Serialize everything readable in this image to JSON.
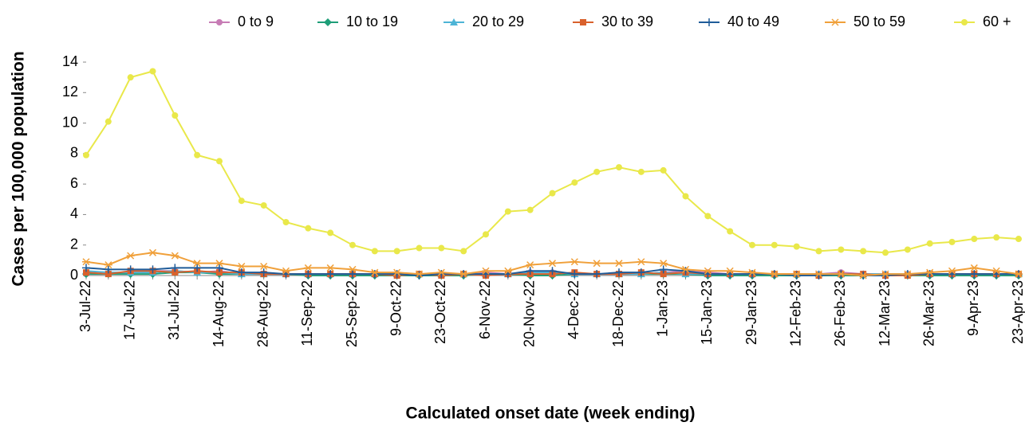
{
  "chart_data": {
    "type": "line",
    "x_label": "Calculated onset date (week ending)",
    "y_label": "Cases per 100,000 population",
    "categories": [
      "3-Jul-22",
      null,
      "17-Jul-22",
      null,
      "31-Jul-22",
      null,
      "14-Aug-22",
      null,
      "28-Aug-22",
      null,
      "11-Sep-22",
      null,
      "25-Sep-22",
      null,
      "9-Oct-22",
      null,
      "23-Oct-22",
      null,
      "6-Nov-22",
      null,
      "20-Nov-22",
      null,
      "4-Dec-22",
      null,
      "18-Dec-22",
      null,
      "1-Jan-23",
      null,
      "15-Jan-23",
      null,
      "29-Jan-23",
      null,
      "12-Feb-23",
      null,
      "26-Feb-23",
      null,
      "12-Mar-23",
      null,
      "26-Mar-23",
      null,
      "9-Apr-23",
      null,
      "23-Apr-23"
    ],
    "ylim": [
      0,
      14
    ],
    "yticks": [
      0,
      2,
      4,
      6,
      8,
      10,
      12,
      14
    ],
    "grid": false,
    "legend": "top",
    "series": [
      {
        "name": "0 to 9",
        "color": "#c77cb5",
        "marker": "circle",
        "values": [
          0.1,
          0.1,
          0.2,
          0.3,
          0.3,
          0.2,
          0.3,
          0.1,
          0.1,
          0.1,
          0.1,
          0.1,
          0.1,
          0.1,
          0.1,
          0.1,
          0.1,
          0.1,
          0.2,
          0.1,
          0.2,
          0.2,
          0.1,
          0.1,
          0.1,
          0.1,
          0.2,
          0.3,
          0.2,
          0.1,
          0.1,
          0.1,
          0.1,
          0.1,
          0.2,
          0.1,
          0.1,
          0.1,
          0.1,
          0.1,
          0.1,
          0.1,
          0.1
        ]
      },
      {
        "name": "10 to 19",
        "color": "#1e9e78",
        "marker": "diamond",
        "values": [
          0.1,
          0.1,
          0.1,
          0.1,
          0.2,
          0.2,
          0.1,
          0.1,
          0.1,
          0.1,
          0.0,
          0.0,
          0.0,
          0.0,
          0.0,
          0.0,
          0.0,
          0.0,
          0.1,
          0.1,
          0.0,
          0.0,
          0.1,
          0.1,
          0.1,
          0.1,
          0.1,
          0.1,
          0.0,
          0.0,
          0.0,
          0.0,
          0.0,
          0.0,
          0.0,
          0.0,
          0.0,
          0.0,
          0.0,
          0.0,
          0.0,
          0.0,
          0.0
        ]
      },
      {
        "name": "20 to 29",
        "color": "#4db4d6",
        "marker": "triangle",
        "values": [
          0.3,
          0.2,
          0.2,
          0.2,
          0.3,
          0.2,
          0.2,
          0.1,
          0.1,
          0.1,
          0.1,
          0.1,
          0.1,
          0.1,
          0.1,
          0.1,
          0.1,
          0.1,
          0.1,
          0.1,
          0.2,
          0.2,
          0.1,
          0.1,
          0.1,
          0.1,
          0.2,
          0.1,
          0.1,
          0.1,
          0.1,
          0.1,
          0.1,
          0.1,
          0.1,
          0.1,
          0.1,
          0.1,
          0.1,
          0.1,
          0.1,
          0.1,
          0.1
        ]
      },
      {
        "name": "30 to 39",
        "color": "#d9612c",
        "marker": "square",
        "values": [
          0.2,
          0.1,
          0.3,
          0.3,
          0.2,
          0.3,
          0.2,
          0.2,
          0.1,
          0.1,
          0.1,
          0.1,
          0.1,
          0.1,
          0.0,
          0.1,
          0.0,
          0.1,
          0.0,
          0.1,
          0.1,
          0.1,
          0.2,
          0.1,
          0.1,
          0.2,
          0.1,
          0.2,
          0.1,
          0.1,
          0.1,
          0.1,
          0.1,
          0.0,
          0.1,
          0.1,
          0.0,
          0.0,
          0.1,
          0.1,
          0.1,
          0.1,
          0.1
        ]
      },
      {
        "name": "40 to 49",
        "color": "#1f5c99",
        "marker": "plus",
        "values": [
          0.5,
          0.4,
          0.4,
          0.4,
          0.5,
          0.5,
          0.5,
          0.2,
          0.2,
          0.1,
          0.1,
          0.1,
          0.1,
          0.1,
          0.1,
          0.0,
          0.1,
          0.1,
          0.1,
          0.1,
          0.3,
          0.3,
          0.1,
          0.1,
          0.2,
          0.2,
          0.4,
          0.3,
          0.1,
          0.1,
          0.1,
          0.1,
          0.0,
          0.0,
          0.1,
          0.0,
          0.0,
          0.1,
          0.1,
          0.1,
          0.1,
          0.1,
          0.1
        ]
      },
      {
        "name": "50 to 59",
        "color": "#f0a03a",
        "marker": "star",
        "values": [
          0.9,
          0.7,
          1.3,
          1.5,
          1.3,
          0.8,
          0.8,
          0.6,
          0.6,
          0.3,
          0.5,
          0.5,
          0.4,
          0.2,
          0.2,
          0.1,
          0.2,
          0.1,
          0.3,
          0.3,
          0.7,
          0.8,
          0.9,
          0.8,
          0.8,
          0.9,
          0.8,
          0.4,
          0.3,
          0.3,
          0.2,
          0.1,
          0.1,
          0.1,
          0.1,
          0.0,
          0.1,
          0.1,
          0.2,
          0.3,
          0.5,
          0.3,
          0.1
        ]
      },
      {
        "name": "60 +",
        "color": "#e9e84a",
        "marker": "circle",
        "values": [
          7.9,
          10.1,
          13.0,
          13.4,
          10.5,
          7.9,
          7.5,
          4.9,
          4.6,
          3.5,
          3.1,
          2.8,
          2.0,
          1.6,
          1.6,
          1.8,
          1.8,
          1.6,
          2.7,
          4.2,
          4.3,
          5.4,
          6.1,
          6.8,
          7.1,
          6.8,
          6.9,
          5.2,
          3.9,
          2.9,
          2.0,
          2.0,
          1.9,
          1.6,
          1.7,
          1.6,
          1.5,
          1.7,
          2.1,
          2.2,
          2.4,
          2.5,
          2.4
        ]
      }
    ]
  }
}
